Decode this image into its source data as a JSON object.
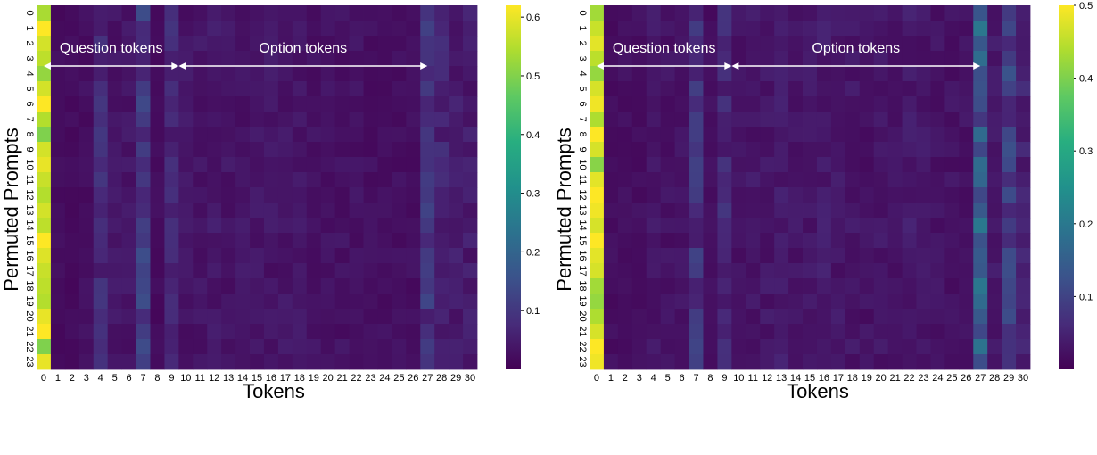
{
  "chart_data": [
    {
      "type": "heatmap",
      "xlabel": "Tokens",
      "ylabel": "Permuted Prompts",
      "x_ticks": [
        "0",
        "1",
        "2",
        "3",
        "4",
        "5",
        "6",
        "7",
        "8",
        "9",
        "10",
        "11",
        "12",
        "13",
        "14",
        "15",
        "16",
        "17",
        "18",
        "19",
        "20",
        "21",
        "22",
        "23",
        "24",
        "25",
        "26",
        "27",
        "28",
        "29",
        "30"
      ],
      "y_ticks": [
        "0",
        "1",
        "2",
        "3",
        "4",
        "5",
        "6",
        "7",
        "8",
        "9",
        "10",
        "11",
        "12",
        "13",
        "14",
        "15",
        "16",
        "17",
        "18",
        "19",
        "20",
        "21",
        "22",
        "23"
      ],
      "colorbar": {
        "range": [
          0.0,
          0.62
        ],
        "ticks": [
          "0.1",
          "0.2",
          "0.3",
          "0.4",
          "0.5",
          "0.6"
        ]
      },
      "annotations": [
        {
          "label": "Question tokens",
          "from_token": 0,
          "to_token": 9.5
        },
        {
          "label": "Option tokens",
          "from_token": 9.5,
          "to_token": 27
        }
      ],
      "column_levels": [
        0.57,
        0.02,
        0.02,
        0.025,
        0.07,
        0.035,
        0.035,
        0.1,
        0.02,
        0.065,
        0.035,
        0.035,
        0.04,
        0.035,
        0.035,
        0.035,
        0.035,
        0.035,
        0.035,
        0.03,
        0.03,
        0.03,
        0.03,
        0.025,
        0.025,
        0.025,
        0.025,
        0.09,
        0.06,
        0.045,
        0.045
      ],
      "first_token_by_row": [
        0.54,
        0.62,
        0.58,
        0.56,
        0.52,
        0.58,
        0.62,
        0.55,
        0.5,
        0.58,
        0.6,
        0.57,
        0.55,
        0.58,
        0.56,
        0.62,
        0.59,
        0.57,
        0.56,
        0.55,
        0.6,
        0.62,
        0.5,
        0.6
      ]
    },
    {
      "type": "heatmap",
      "xlabel": "Tokens",
      "ylabel": "Permuted Prompts",
      "x_ticks": [
        "0",
        "1",
        "2",
        "3",
        "4",
        "5",
        "6",
        "7",
        "8",
        "9",
        "10",
        "11",
        "12",
        "13",
        "14",
        "15",
        "16",
        "17",
        "18",
        "19",
        "20",
        "21",
        "22",
        "23",
        "24",
        "25",
        "26",
        "27",
        "28",
        "29",
        "30"
      ],
      "y_ticks": [
        "0",
        "1",
        "2",
        "3",
        "4",
        "5",
        "6",
        "7",
        "8",
        "9",
        "10",
        "11",
        "12",
        "13",
        "14",
        "15",
        "16",
        "17",
        "18",
        "19",
        "20",
        "21",
        "22",
        "23"
      ],
      "colorbar": {
        "range": [
          0.0,
          0.5
        ],
        "ticks": [
          "0.1",
          "0.2",
          "0.3",
          "0.4",
          "0.5"
        ]
      },
      "annotations": [
        {
          "label": "Question tokens",
          "from_token": 0,
          "to_token": 9.5
        },
        {
          "label": "Option tokens",
          "from_token": 9.5,
          "to_token": 27
        }
      ],
      "column_levels": [
        0.47,
        0.02,
        0.02,
        0.02,
        0.03,
        0.025,
        0.025,
        0.07,
        0.02,
        0.055,
        0.025,
        0.03,
        0.03,
        0.035,
        0.03,
        0.03,
        0.035,
        0.03,
        0.03,
        0.025,
        0.03,
        0.025,
        0.035,
        0.03,
        0.025,
        0.025,
        0.025,
        0.14,
        0.03,
        0.09,
        0.045
      ],
      "first_token_by_row": [
        0.43,
        0.46,
        0.48,
        0.45,
        0.42,
        0.47,
        0.49,
        0.44,
        0.5,
        0.47,
        0.41,
        0.48,
        0.5,
        0.49,
        0.47,
        0.5,
        0.48,
        0.47,
        0.43,
        0.42,
        0.44,
        0.47,
        0.5,
        0.49
      ]
    }
  ]
}
